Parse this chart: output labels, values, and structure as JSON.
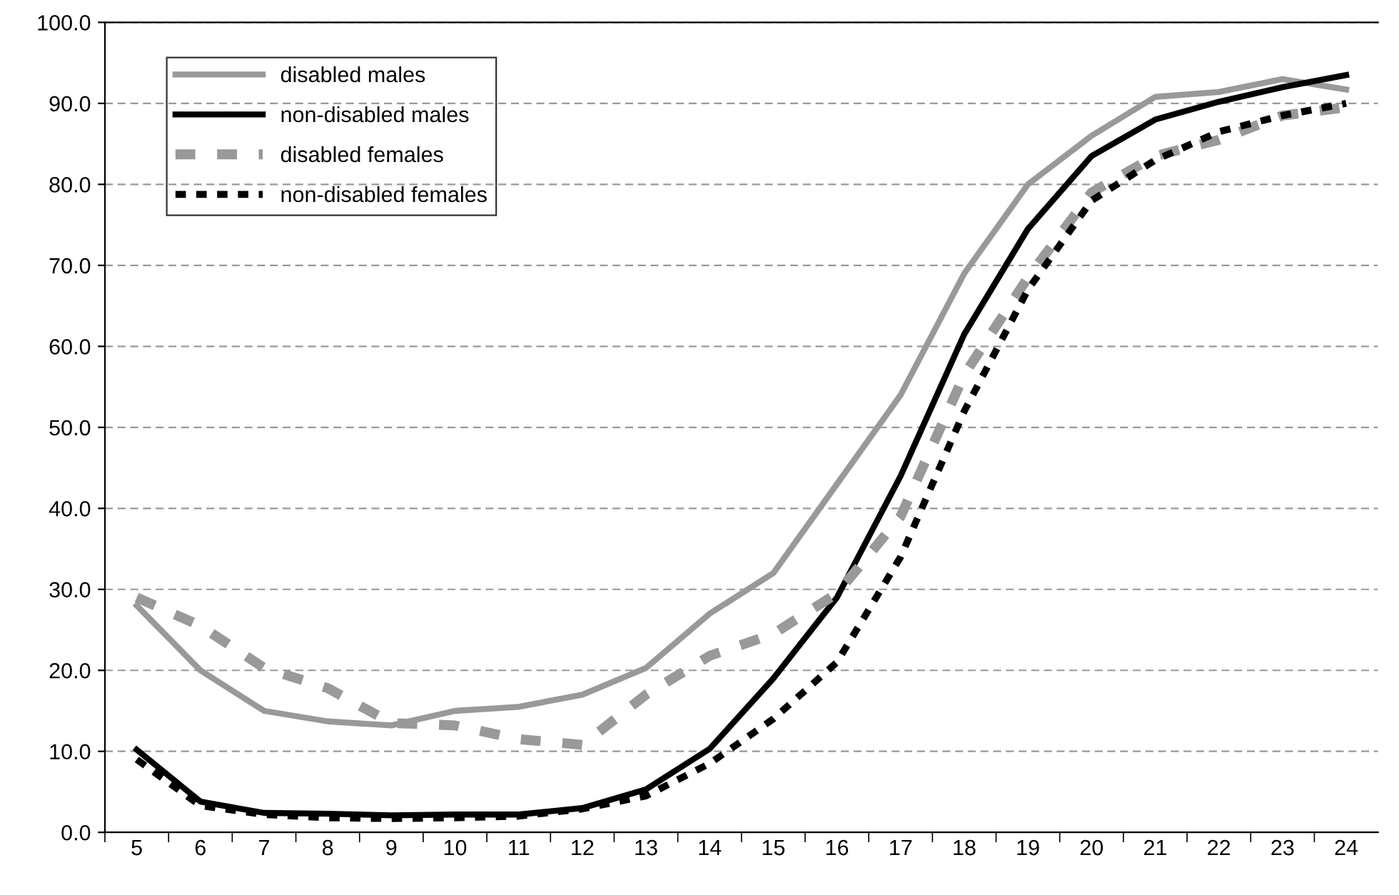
{
  "chart_data": {
    "type": "line",
    "categories": [
      "5",
      "6",
      "7",
      "8",
      "9",
      "10",
      "11",
      "12",
      "13",
      "14",
      "15",
      "16",
      "17",
      "18",
      "19",
      "20",
      "21",
      "22",
      "23",
      "24"
    ],
    "ylim": [
      0,
      100
    ],
    "yticks": [
      {
        "value": 0,
        "label": "0.0"
      },
      {
        "value": 10,
        "label": "10.0"
      },
      {
        "value": 20,
        "label": "20.0"
      },
      {
        "value": 30,
        "label": "30.0"
      },
      {
        "value": 40,
        "label": "40.0"
      },
      {
        "value": 50,
        "label": "50.0"
      },
      {
        "value": 60,
        "label": "60.0"
      },
      {
        "value": 70,
        "label": "70.0"
      },
      {
        "value": 80,
        "label": "80.0"
      },
      {
        "value": 90,
        "label": "90.0"
      },
      {
        "value": 100,
        "label": "100.0"
      }
    ],
    "grid": "y",
    "legend": "top left",
    "marker": "none",
    "series": [
      {
        "name": "disabled males",
        "color": "#999999",
        "line_style": "solid",
        "values": [
          28,
          20,
          15,
          13.7,
          13.2,
          15,
          15.5,
          17,
          20.3,
          27,
          32,
          43,
          54,
          69,
          80,
          86,
          90.8,
          91.4,
          93,
          91.7
        ]
      },
      {
        "name": "non-disabled males",
        "color": "#000000",
        "line_style": "solid",
        "values": [
          10.2,
          3.8,
          2.4,
          2.3,
          2.1,
          2.2,
          2.2,
          3.0,
          5.3,
          10.3,
          19,
          29,
          44,
          61.5,
          74.5,
          83.5,
          88,
          90.2,
          92,
          93.5
        ]
      },
      {
        "name": "disabled females",
        "color": "#999999",
        "line_style": "dashed",
        "values": [
          29,
          25.5,
          20.3,
          17.8,
          13.5,
          13.2,
          11.5,
          10.8,
          17,
          21.8,
          24.5,
          29.5,
          39,
          56.5,
          68.5,
          79,
          83.5,
          85.5,
          88.5,
          89.5
        ]
      },
      {
        "name": "non-disabled females",
        "color": "#000000",
        "line_style": "dotted",
        "values": [
          9,
          3.3,
          2.2,
          1.8,
          1.7,
          1.8,
          2.0,
          2.9,
          4.5,
          8.5,
          14,
          21,
          34,
          52,
          67,
          78,
          83,
          86.5,
          88.5,
          90
        ]
      }
    ]
  }
}
